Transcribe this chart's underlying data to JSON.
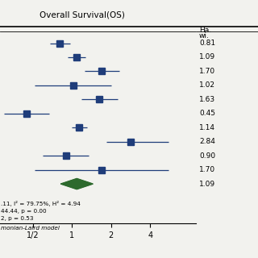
{
  "title": "Overall Survival(OS)",
  "right_header_line1": "Ha.",
  "right_header_line2": "wi.",
  "studies": [
    {
      "hr": 0.81,
      "ci_lo": 0.68,
      "ci_hi": 0.97,
      "label": "0.81"
    },
    {
      "hr": 1.09,
      "ci_lo": 0.93,
      "ci_hi": 1.27,
      "label": "1.09"
    },
    {
      "hr": 1.7,
      "ci_lo": 1.25,
      "ci_hi": 2.3,
      "label": "1.70"
    },
    {
      "hr": 1.02,
      "ci_lo": 0.52,
      "ci_hi": 2.0,
      "label": "1.02"
    },
    {
      "hr": 1.63,
      "ci_lo": 1.18,
      "ci_hi": 2.25,
      "label": "1.63"
    },
    {
      "hr": 0.45,
      "ci_lo": 0.3,
      "ci_hi": 0.67,
      "label": "0.45"
    },
    {
      "hr": 1.14,
      "ci_lo": 1.0,
      "ci_hi": 1.3,
      "label": "1.14"
    },
    {
      "hr": 2.84,
      "ci_lo": 1.85,
      "ci_hi": 5.5,
      "label": "2.84"
    },
    {
      "hr": 0.9,
      "ci_lo": 0.6,
      "ci_hi": 1.35,
      "label": "0.90"
    },
    {
      "hr": 1.7,
      "ci_lo": 0.52,
      "ci_hi": 5.5,
      "label": "1.70"
    }
  ],
  "pooled": {
    "hr": 1.09,
    "ci_lo": 0.82,
    "ci_hi": 1.45,
    "label": "1.09"
  },
  "stat_lines": [
    ".11, I² = 79.75%, H² = 4.94",
    "44.44, p = 0.00",
    "2, p = 0.53"
  ],
  "footer": "monian-Laird model",
  "xticks": [
    0.5,
    1.0,
    2.0,
    4.0
  ],
  "xticklabels": [
    "1/2",
    "1",
    "2",
    "4"
  ],
  "xlim_lo": 0.28,
  "xlim_hi": 9.0,
  "square_color": "#1f3d7a",
  "diamond_color": "#2d6a2d",
  "line_color": "#1f3d7a",
  "bg_color": "#f2f2ee"
}
